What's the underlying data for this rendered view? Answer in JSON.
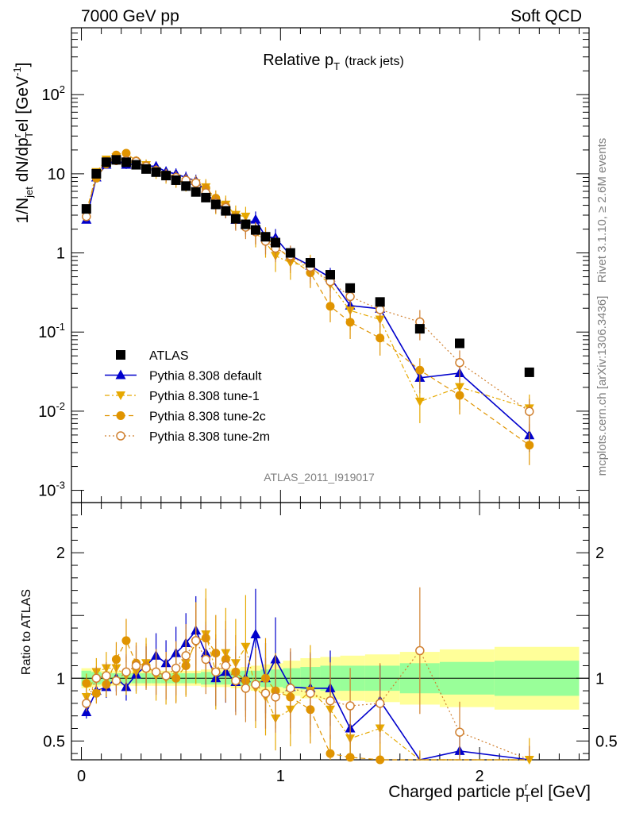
{
  "header": {
    "left": "7000 GeV pp",
    "right": "Soft QCD"
  },
  "side_text": {
    "rivet": "Rivet 3.1.10, ≥ 2.6M events",
    "mcplots": "mcplots.cern.ch [arXiv:1306.3436]"
  },
  "analysis_id": "ATLAS_2011_I919017",
  "colors": {
    "atlas": "#000000",
    "default": "#0000cc",
    "tune1": "#e6a800",
    "tune2c": "#e09400",
    "tune2m": "#d08030",
    "green_band": "#99ff99",
    "yellow_band": "#ffff99"
  },
  "chart_data": {
    "type": "scatter",
    "title_main": "Relative p",
    "title_sub": "T",
    "title_suffix": "(track jets)",
    "xlabel_main": "Charged particle p",
    "xlabel_sub": "T",
    "xlabel_sup": "r",
    "xlabel_suffix": "el [GeV]",
    "ylabel": "1/N jet dN/dp T r el [GeV⁻¹]",
    "ratio_ylabel": "Ratio to ATLAS",
    "xlim": [
      -0.05,
      2.55
    ],
    "ylim": [
      0.0007,
      700
    ],
    "y_scale": "log",
    "ratio_ylim": [
      0.35,
      2.4
    ],
    "x_ticks": [
      "0",
      "1",
      "2"
    ],
    "y_ticks": [
      "10⁻³",
      "10⁻²",
      "10⁻¹",
      "1",
      "10",
      "10²"
    ],
    "ratio_ticks": [
      "0.5",
      "1",
      "2"
    ],
    "legend": {
      "position": "lower-left",
      "entries": [
        {
          "label": "ATLAS",
          "key": "atlas"
        },
        {
          "label": "Pythia 8.308 default",
          "key": "default"
        },
        {
          "label": "Pythia 8.308 tune-1",
          "key": "tune1"
        },
        {
          "label": "Pythia 8.308 tune-2c",
          "key": "tune2c"
        },
        {
          "label": "Pythia 8.308 tune-2m",
          "key": "tune2m"
        }
      ]
    },
    "x": [
      0.025,
      0.075,
      0.125,
      0.175,
      0.225,
      0.275,
      0.325,
      0.375,
      0.425,
      0.475,
      0.525,
      0.575,
      0.625,
      0.675,
      0.725,
      0.775,
      0.825,
      0.875,
      0.925,
      0.975,
      1.05,
      1.15,
      1.25,
      1.35,
      1.5,
      1.7,
      1.9,
      2.25
    ],
    "atlas": [
      3.6,
      10.0,
      14.0,
      15.0,
      14.0,
      13.0,
      11.5,
      10.5,
      9.5,
      8.3,
      7.0,
      5.9,
      5.0,
      4.1,
      3.4,
      2.7,
      2.3,
      1.95,
      1.6,
      1.35,
      1.0,
      0.75,
      0.53,
      0.36,
      0.24,
      0.11,
      0.072,
      0.031
    ],
    "default_ratio": [
      0.73,
      0.9,
      0.93,
      1.0,
      0.93,
      1.03,
      1.1,
      1.18,
      1.12,
      1.2,
      1.28,
      1.38,
      1.2,
      1.0,
      1.05,
      0.97,
      1.0,
      1.35,
      1.0,
      1.15,
      0.93,
      0.92,
      0.92,
      0.6,
      0.82,
      0.24,
      0.42,
      0.16
    ],
    "tune1_ratio": [
      0.85,
      1.05,
      1.08,
      1.08,
      1.02,
      1.05,
      1.12,
      1.02,
      1.0,
      1.05,
      1.12,
      1.28,
      1.35,
      1.05,
      1.2,
      1.12,
      1.25,
      0.92,
      0.85,
      0.68,
      0.75,
      0.9,
      0.75,
      0.52,
      0.6,
      0.12,
      0.28,
      0.35
    ],
    "tune2c_ratio": [
      0.96,
      0.88,
      0.95,
      1.15,
      1.3,
      1.12,
      1.1,
      1.05,
      1.02,
      1.0,
      1.1,
      1.3,
      1.32,
      1.2,
      1.15,
      1.05,
      0.98,
      0.95,
      1.0,
      0.9,
      0.85,
      0.75,
      0.4,
      0.37,
      0.35,
      0.3,
      0.22,
      0.12
    ],
    "tune2m_ratio": [
      0.8,
      1.0,
      1.02,
      0.98,
      1.05,
      1.1,
      1.08,
      1.05,
      1.02,
      1.08,
      1.18,
      1.3,
      1.15,
      1.05,
      1.1,
      0.98,
      0.92,
      0.95,
      0.88,
      0.85,
      0.92,
      0.88,
      0.82,
      0.78,
      0.8,
      1.22,
      0.57,
      0.32
    ],
    "green_band": [
      0.06,
      0.05,
      0.04,
      0.04,
      0.04,
      0.04,
      0.04,
      0.04,
      0.04,
      0.04,
      0.04,
      0.04,
      0.05,
      0.05,
      0.05,
      0.05,
      0.06,
      0.06,
      0.07,
      0.07,
      0.08,
      0.09,
      0.1,
      0.1,
      0.1,
      0.12,
      0.13,
      0.14
    ],
    "yellow_band": [
      0.08,
      0.07,
      0.06,
      0.06,
      0.06,
      0.06,
      0.06,
      0.06,
      0.06,
      0.06,
      0.06,
      0.06,
      0.07,
      0.07,
      0.07,
      0.08,
      0.09,
      0.1,
      0.11,
      0.12,
      0.14,
      0.16,
      0.17,
      0.18,
      0.19,
      0.21,
      0.23,
      0.25
    ]
  }
}
